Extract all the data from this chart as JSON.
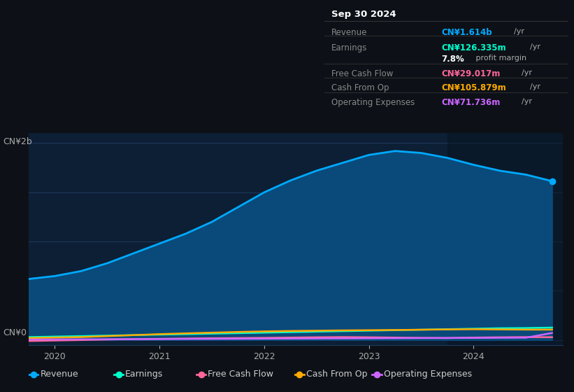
{
  "bg_color": "#0d1117",
  "plot_bg_color": "#0d1f35",
  "grid_color": "#1e3a5f",
  "title_box": {
    "date": "Sep 30 2024",
    "rows": [
      {
        "label": "Revenue",
        "value": "CN¥1.614b",
        "unit": "/yr",
        "value_color": "#00aaff"
      },
      {
        "label": "Earnings",
        "value": "CN¥126.335m",
        "unit": "/yr",
        "value_color": "#00ffcc"
      },
      {
        "label": "",
        "value": "7.8%",
        "unit": " profit margin",
        "value_color": "#ffffff"
      },
      {
        "label": "Free Cash Flow",
        "value": "CN¥29.017m",
        "unit": "/yr",
        "value_color": "#ff6699"
      },
      {
        "label": "Cash From Op",
        "value": "CN¥105.879m",
        "unit": "/yr",
        "value_color": "#ffaa00"
      },
      {
        "label": "Operating Expenses",
        "value": "CN¥71.736m",
        "unit": "/yr",
        "value_color": "#cc66ff"
      }
    ]
  },
  "ylabel": "CN¥2b",
  "ylabel0": "CN¥0",
  "x_years": [
    2020,
    2021,
    2022,
    2023,
    2024
  ],
  "revenue": {
    "x": [
      2019.75,
      2020.0,
      2020.25,
      2020.5,
      2020.75,
      2021.0,
      2021.25,
      2021.5,
      2021.75,
      2022.0,
      2022.25,
      2022.5,
      2022.75,
      2023.0,
      2023.25,
      2023.5,
      2023.75,
      2024.0,
      2024.25,
      2024.5,
      2024.75
    ],
    "y": [
      0.62,
      0.65,
      0.7,
      0.78,
      0.88,
      0.98,
      1.08,
      1.2,
      1.35,
      1.5,
      1.62,
      1.72,
      1.8,
      1.88,
      1.92,
      1.9,
      1.85,
      1.78,
      1.72,
      1.68,
      1.614
    ],
    "color": "#00aaff",
    "fill_color": "#0a4a7a",
    "linewidth": 2.0
  },
  "earnings": {
    "x": [
      2019.75,
      2020.0,
      2020.25,
      2020.5,
      2020.75,
      2021.0,
      2021.25,
      2021.5,
      2021.75,
      2022.0,
      2022.25,
      2022.5,
      2022.75,
      2023.0,
      2023.25,
      2023.5,
      2023.75,
      2024.0,
      2024.25,
      2024.5,
      2024.75
    ],
    "y": [
      0.03,
      0.035,
      0.04,
      0.045,
      0.05,
      0.055,
      0.06,
      0.065,
      0.07,
      0.075,
      0.08,
      0.085,
      0.09,
      0.095,
      0.1,
      0.105,
      0.11,
      0.115,
      0.12,
      0.122,
      0.1263
    ],
    "color": "#00ffcc",
    "linewidth": 1.8
  },
  "free_cash_flow": {
    "x": [
      2019.75,
      2020.0,
      2020.25,
      2020.5,
      2020.75,
      2021.0,
      2021.25,
      2021.5,
      2021.75,
      2022.0,
      2022.25,
      2022.5,
      2022.75,
      2023.0,
      2023.25,
      2023.5,
      2023.75,
      2024.0,
      2024.25,
      2024.5,
      2024.75
    ],
    "y": [
      -0.01,
      -0.005,
      0.0,
      0.005,
      0.01,
      0.012,
      0.015,
      0.018,
      0.02,
      0.022,
      0.025,
      0.028,
      0.03,
      0.028,
      0.025,
      0.022,
      0.02,
      0.025,
      0.028,
      0.03,
      0.029
    ],
    "color": "#ff6699",
    "linewidth": 1.8
  },
  "cash_from_op": {
    "x": [
      2019.75,
      2020.0,
      2020.25,
      2020.5,
      2020.75,
      2021.0,
      2021.25,
      2021.5,
      2021.75,
      2022.0,
      2022.25,
      2022.5,
      2022.75,
      2023.0,
      2023.25,
      2023.5,
      2023.75,
      2024.0,
      2024.25,
      2024.5,
      2024.75
    ],
    "y": [
      0.02,
      0.025,
      0.03,
      0.04,
      0.05,
      0.06,
      0.068,
      0.075,
      0.082,
      0.088,
      0.092,
      0.095,
      0.098,
      0.1,
      0.102,
      0.105,
      0.108,
      0.11,
      0.108,
      0.106,
      0.1059
    ],
    "color": "#ffaa00",
    "linewidth": 1.8
  },
  "operating_expenses": {
    "x": [
      2019.75,
      2020.0,
      2020.25,
      2020.5,
      2020.75,
      2021.0,
      2021.25,
      2021.5,
      2021.75,
      2022.0,
      2022.25,
      2022.5,
      2022.75,
      2023.0,
      2023.25,
      2023.5,
      2023.75,
      2024.0,
      2024.25,
      2024.5,
      2024.75
    ],
    "y": [
      0.005,
      0.006,
      0.007,
      0.008,
      0.009,
      0.01,
      0.011,
      0.012,
      0.013,
      0.014,
      0.015,
      0.016,
      0.017,
      0.018,
      0.019,
      0.02,
      0.021,
      0.022,
      0.023,
      0.024,
      0.07174
    ],
    "color": "#cc66ff",
    "linewidth": 1.8
  },
  "xlim": [
    2019.75,
    2024.85
  ],
  "ylim": [
    -0.05,
    2.1
  ],
  "legend": [
    {
      "label": "Revenue",
      "color": "#00aaff"
    },
    {
      "label": "Earnings",
      "color": "#00ffcc"
    },
    {
      "label": "Free Cash Flow",
      "color": "#ff6699"
    },
    {
      "label": "Cash From Op",
      "color": "#ffaa00"
    },
    {
      "label": "Operating Expenses",
      "color": "#cc66ff"
    }
  ]
}
